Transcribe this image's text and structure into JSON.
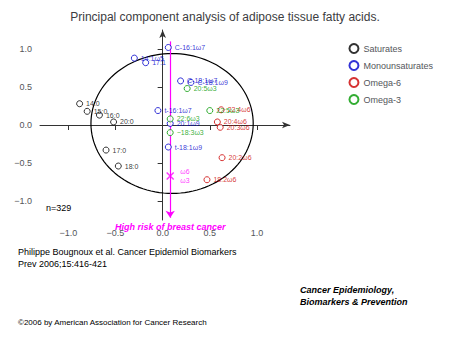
{
  "chart_data": {
    "type": "scatter",
    "title": "Principal component analysis of adipose tissue fatty acids.",
    "xlim": [
      -1.3,
      1.35
    ],
    "ylim": [
      -1.25,
      1.25
    ],
    "xticks": [
      {
        "value": -1.0,
        "label": "−1.0"
      },
      {
        "value": -0.5,
        "label": "−0.5"
      },
      {
        "value": 0.0,
        "label": "0.0"
      },
      0.5,
      {
        "value": 1.0,
        "label": "1.0"
      }
    ],
    "yticks": [
      {
        "value": -1.0,
        "label": "−1.0"
      },
      {
        "value": -0.5,
        "label": "−0.5"
      },
      {
        "value": 0.0,
        "label": "0.0"
      },
      0.5,
      {
        "value": 1.0,
        "label": "1.0"
      }
    ],
    "grid": false,
    "legend": "upper right",
    "series": [
      {
        "name": "Saturates",
        "color": "#000000",
        "marker": "circle",
        "x": [
          -0.88,
          -0.8,
          -0.67,
          -0.52,
          -0.6,
          -0.47
        ],
        "y": [
          0.28,
          0.18,
          0.13,
          0.04,
          -0.33,
          -0.54
        ],
        "labels": [
          "14:0",
          "15:0",
          "16:0",
          "20:0",
          "17:0",
          "18:0"
        ]
      },
      {
        "name": "Monounsaturates",
        "color": "#0000cc",
        "marker": "circle",
        "x": [
          -0.3,
          -0.18,
          0.06,
          0.19,
          0.3,
          -0.05,
          0.08,
          0.06
        ],
        "y": [
          0.88,
          0.82,
          1.02,
          0.58,
          0.56,
          0.19,
          0.02,
          -0.29
        ],
        "labels": [
          "14:1ω5",
          "17:1",
          "C-16:1ω7",
          "C-18:1ω7",
          "C-18:1ω9",
          "t-16:1ω7",
          "20:1ω9",
          "t-18:1ω9"
        ]
      },
      {
        "name": "Omega-6",
        "color": "#cc0000",
        "marker": "circle",
        "x": [
          0.62,
          0.58,
          0.61,
          0.63,
          0.47
        ],
        "y": [
          0.2,
          0.04,
          -0.03,
          -0.43,
          -0.72
        ],
        "labels": [
          "22:4ω6",
          "20:4ω6",
          "20:3ω6",
          "20:2ω6",
          "18:2ω6"
        ]
      },
      {
        "name": "Omega-3",
        "color": "#009900",
        "marker": "circle",
        "x": [
          0.26,
          0.5,
          0.08,
          0.08
        ],
        "y": [
          0.48,
          0.19,
          -0.1,
          0.08
        ],
        "labels": [
          "20:5ω3",
          "22:5ω3",
          "−18:3ω3",
          "22:6ω3"
        ]
      }
    ],
    "cross": {
      "x": 0.08,
      "y": -0.67,
      "color": "#ff00ff",
      "marker": "x",
      "labels": [
        "ω6",
        "ω3"
      ]
    },
    "risk_arrow": {
      "x": 0.08,
      "y_from": 1.1,
      "y_to": -1.22,
      "color": "#ff00ff",
      "label": "High risk of breast cancer"
    },
    "ellipse": {
      "cx": 0.1,
      "cy": 0.02,
      "rx": 0.86,
      "ry": 0.92,
      "angle": 0,
      "color": "#000000"
    },
    "n_label": "n=329",
    "citation": "Philippe Bougnoux et al. Cancer Epidemiol Biomarkers\nPrev 2006;15:416-421",
    "copyright": "©2006 by American Association for Cancer Research",
    "journal_text": "Cancer Epidemiology,\nBiomarkers & Prevention"
  }
}
